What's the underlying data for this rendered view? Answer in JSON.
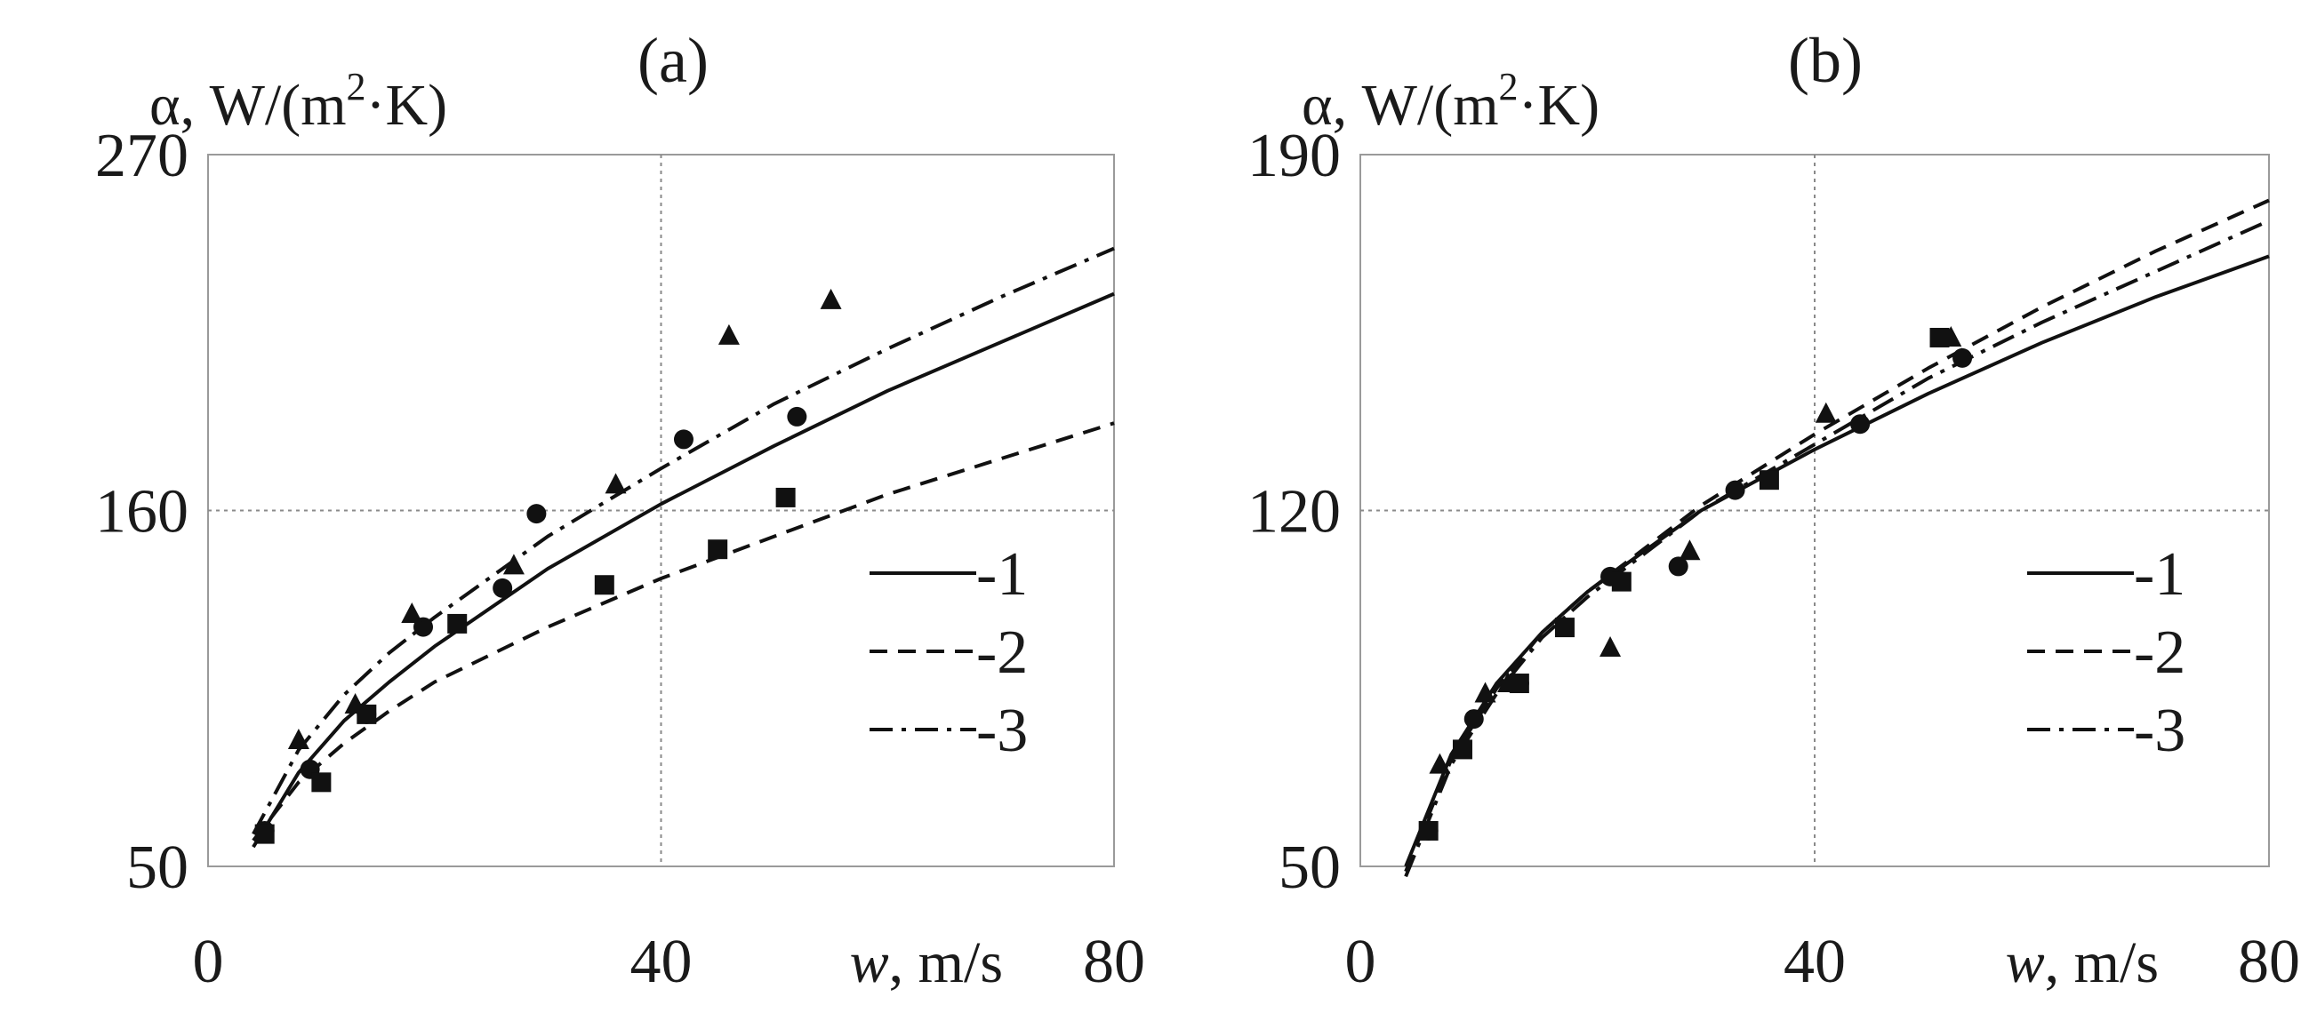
{
  "chart_data": [
    {
      "type": "line",
      "panel_label": "(a)",
      "ylabel_prefix": "α, W/(m",
      "ylabel_sup": "2",
      "ylabel_suffix": "·K)",
      "xlabel_var": "w",
      "xlabel_unit": ", m/s",
      "xlim": [
        0,
        80
      ],
      "ylim": [
        50,
        270
      ],
      "xticks": [
        "0",
        "40",
        "80"
      ],
      "yticks": [
        "50",
        "160",
        "270"
      ],
      "grid": true,
      "legend": [
        "-1",
        "-2",
        "-3"
      ],
      "series": [
        {
          "name": "1",
          "style": "solid",
          "x": [
            4,
            8,
            12,
            16,
            20,
            30,
            40,
            50,
            60,
            70,
            80
          ],
          "y": [
            56,
            79,
            95,
            107,
            118,
            142,
            162,
            180,
            197,
            212,
            227
          ]
        },
        {
          "name": "2",
          "style": "dashed",
          "x": [
            4,
            8,
            12,
            16,
            20,
            30,
            40,
            50,
            60,
            70,
            80
          ],
          "y": [
            58,
            76,
            88,
            98,
            107,
            124,
            139,
            152,
            165,
            176,
            187
          ]
        },
        {
          "name": "3",
          "style": "dashdot",
          "x": [
            4,
            8,
            12,
            16,
            20,
            30,
            40,
            50,
            60,
            70,
            80
          ],
          "y": [
            60,
            86,
            103,
            116,
            127,
            152,
            173,
            193,
            210,
            226,
            241
          ]
        }
      ],
      "points": [
        {
          "marker": "circle",
          "x": [
            5,
            9,
            14,
            19,
            26,
            29,
            42,
            52
          ],
          "y": [
            61,
            80,
            97,
            124,
            136,
            159,
            182,
            189
          ]
        },
        {
          "marker": "square",
          "x": [
            5,
            10,
            14,
            22,
            35,
            45,
            51
          ],
          "y": [
            60,
            76,
            97,
            125,
            137,
            148,
            164
          ]
        },
        {
          "marker": "triangle",
          "x": [
            8,
            13,
            18,
            27,
            36,
            46,
            55
          ],
          "y": [
            89,
            100,
            128,
            143,
            168,
            214,
            225
          ]
        }
      ]
    },
    {
      "type": "line",
      "panel_label": "(b)",
      "ylabel_prefix": "α, W/(m",
      "ylabel_sup": "2",
      "ylabel_suffix": "·K)",
      "xlabel_var": "w",
      "xlabel_unit": ", m/s",
      "xlim": [
        0,
        80
      ],
      "ylim": [
        50,
        190
      ],
      "xticks": [
        "0",
        "40",
        "80"
      ],
      "yticks": [
        "50",
        "120",
        "190"
      ],
      "grid": true,
      "legend": [
        "-1",
        "-2",
        "-3"
      ],
      "series": [
        {
          "name": "1",
          "style": "solid",
          "x": [
            4,
            8,
            12,
            16,
            20,
            30,
            40,
            50,
            60,
            70,
            80
          ],
          "y": [
            50,
            72,
            86,
            96,
            104,
            120,
            132,
            143,
            153,
            162,
            170
          ]
        },
        {
          "name": "2",
          "style": "dashed",
          "x": [
            4,
            8,
            12,
            16,
            20,
            30,
            40,
            50,
            60,
            70,
            80
          ],
          "y": [
            49,
            71,
            85,
            96,
            104,
            121,
            135,
            148,
            160,
            171,
            181
          ]
        },
        {
          "name": "3",
          "style": "dashdot",
          "x": [
            4,
            8,
            12,
            16,
            20,
            30,
            40,
            50,
            60,
            70,
            80
          ],
          "y": [
            48,
            70,
            84,
            95,
            103,
            120,
            133,
            146,
            157,
            167,
            177
          ]
        }
      ],
      "points": [
        {
          "marker": "circle",
          "x": [
            6,
            10,
            14,
            22,
            28,
            33,
            44,
            53
          ],
          "y": [
            57,
            79,
            86,
            107,
            109,
            124,
            137,
            150
          ]
        },
        {
          "marker": "square",
          "x": [
            6,
            9,
            14,
            18,
            23,
            36,
            51
          ],
          "y": [
            57,
            73,
            86,
            97,
            106,
            126,
            154
          ]
        },
        {
          "marker": "triangle",
          "x": [
            7,
            11,
            13,
            22,
            29,
            41,
            52
          ],
          "y": [
            70,
            84,
            86,
            93,
            112,
            139,
            154
          ]
        }
      ]
    }
  ]
}
